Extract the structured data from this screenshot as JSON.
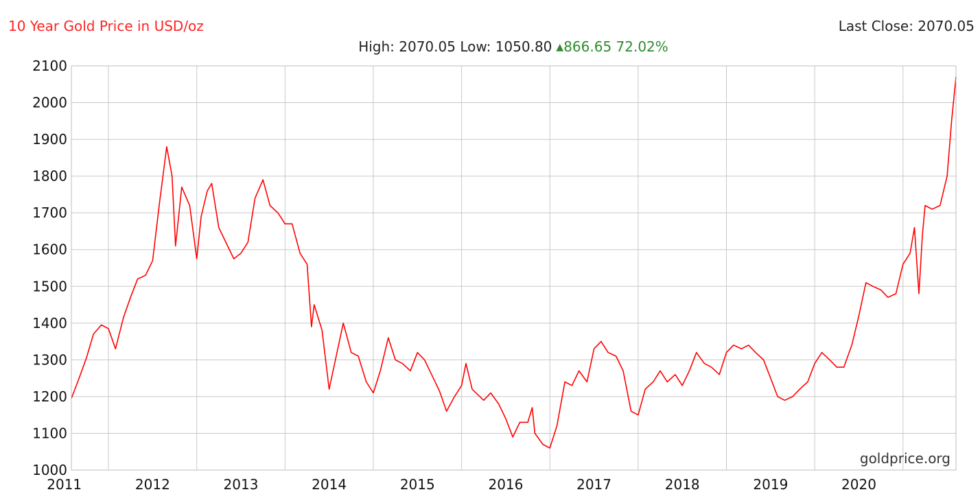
{
  "header": {
    "title": "10 Year Gold Price in USD/oz",
    "last_close": "Last Close: 2070.05",
    "high_low": "High: 2070.05 Low: 1050.80",
    "change": "866.65 72.02%"
  },
  "watermark": "goldprice.org",
  "colors": {
    "line": "#ff0000",
    "grid": "#c8c8c8",
    "title": "#ff2222",
    "positive": "#2e8b2e"
  },
  "chart_data": {
    "type": "line",
    "title": "10 Year Gold Price in USD/oz",
    "xlabel": "",
    "ylabel": "",
    "ylim": [
      1000,
      2100
    ],
    "xlim": [
      2010.58,
      2020.6
    ],
    "yticks": [
      1000,
      1100,
      1200,
      1300,
      1400,
      1500,
      1600,
      1700,
      1800,
      1900,
      2000,
      2100
    ],
    "xticks": [
      "2011",
      "2012",
      "2013",
      "2014",
      "2015",
      "2016",
      "2017",
      "2018",
      "2019",
      "2020"
    ],
    "grid": true,
    "series": [
      {
        "name": "",
        "points": [
          [
            2010.58,
            1195
          ],
          [
            2010.66,
            1245
          ],
          [
            2010.75,
            1305
          ],
          [
            2010.83,
            1370
          ],
          [
            2010.92,
            1395
          ],
          [
            2011.0,
            1385
          ],
          [
            2011.08,
            1330
          ],
          [
            2011.17,
            1415
          ],
          [
            2011.25,
            1470
          ],
          [
            2011.33,
            1520
          ],
          [
            2011.42,
            1530
          ],
          [
            2011.5,
            1570
          ],
          [
            2011.58,
            1730
          ],
          [
            2011.66,
            1880
          ],
          [
            2011.72,
            1800
          ],
          [
            2011.76,
            1610
          ],
          [
            2011.83,
            1770
          ],
          [
            2011.92,
            1720
          ],
          [
            2012.0,
            1575
          ],
          [
            2012.05,
            1690
          ],
          [
            2012.12,
            1760
          ],
          [
            2012.17,
            1780
          ],
          [
            2012.25,
            1660
          ],
          [
            2012.33,
            1620
          ],
          [
            2012.42,
            1575
          ],
          [
            2012.5,
            1590
          ],
          [
            2012.58,
            1620
          ],
          [
            2012.66,
            1740
          ],
          [
            2012.75,
            1790
          ],
          [
            2012.83,
            1720
          ],
          [
            2012.92,
            1700
          ],
          [
            2013.0,
            1670
          ],
          [
            2013.08,
            1670
          ],
          [
            2013.17,
            1590
          ],
          [
            2013.25,
            1560
          ],
          [
            2013.3,
            1390
          ],
          [
            2013.33,
            1450
          ],
          [
            2013.42,
            1380
          ],
          [
            2013.5,
            1220
          ],
          [
            2013.58,
            1310
          ],
          [
            2013.66,
            1400
          ],
          [
            2013.75,
            1320
          ],
          [
            2013.83,
            1310
          ],
          [
            2013.92,
            1240
          ],
          [
            2014.0,
            1210
          ],
          [
            2014.08,
            1270
          ],
          [
            2014.17,
            1360
          ],
          [
            2014.25,
            1300
          ],
          [
            2014.33,
            1290
          ],
          [
            2014.42,
            1270
          ],
          [
            2014.5,
            1320
          ],
          [
            2014.58,
            1300
          ],
          [
            2014.66,
            1260
          ],
          [
            2014.75,
            1215
          ],
          [
            2014.83,
            1160
          ],
          [
            2014.92,
            1200
          ],
          [
            2015.0,
            1230
          ],
          [
            2015.05,
            1290
          ],
          [
            2015.12,
            1220
          ],
          [
            2015.25,
            1190
          ],
          [
            2015.33,
            1210
          ],
          [
            2015.42,
            1180
          ],
          [
            2015.5,
            1140
          ],
          [
            2015.58,
            1090
          ],
          [
            2015.66,
            1130
          ],
          [
            2015.75,
            1130
          ],
          [
            2015.8,
            1170
          ],
          [
            2015.83,
            1100
          ],
          [
            2015.92,
            1070
          ],
          [
            2016.0,
            1060
          ],
          [
            2016.08,
            1120
          ],
          [
            2016.17,
            1240
          ],
          [
            2016.25,
            1230
          ],
          [
            2016.33,
            1270
          ],
          [
            2016.42,
            1240
          ],
          [
            2016.5,
            1330
          ],
          [
            2016.58,
            1350
          ],
          [
            2016.66,
            1320
          ],
          [
            2016.75,
            1310
          ],
          [
            2016.83,
            1270
          ],
          [
            2016.92,
            1160
          ],
          [
            2017.0,
            1150
          ],
          [
            2017.08,
            1220
          ],
          [
            2017.17,
            1240
          ],
          [
            2017.25,
            1270
          ],
          [
            2017.33,
            1240
          ],
          [
            2017.42,
            1260
          ],
          [
            2017.5,
            1230
          ],
          [
            2017.58,
            1270
          ],
          [
            2017.66,
            1320
          ],
          [
            2017.75,
            1290
          ],
          [
            2017.83,
            1280
          ],
          [
            2017.92,
            1260
          ],
          [
            2018.0,
            1320
          ],
          [
            2018.08,
            1340
          ],
          [
            2018.17,
            1330
          ],
          [
            2018.25,
            1340
          ],
          [
            2018.33,
            1320
          ],
          [
            2018.42,
            1300
          ],
          [
            2018.5,
            1250
          ],
          [
            2018.58,
            1200
          ],
          [
            2018.66,
            1190
          ],
          [
            2018.75,
            1200
          ],
          [
            2018.83,
            1220
          ],
          [
            2018.92,
            1240
          ],
          [
            2019.0,
            1290
          ],
          [
            2019.08,
            1320
          ],
          [
            2019.17,
            1300
          ],
          [
            2019.25,
            1280
          ],
          [
            2019.33,
            1280
          ],
          [
            2019.42,
            1340
          ],
          [
            2019.5,
            1420
          ],
          [
            2019.58,
            1510
          ],
          [
            2019.66,
            1500
          ],
          [
            2019.75,
            1490
          ],
          [
            2019.83,
            1470
          ],
          [
            2019.92,
            1480
          ],
          [
            2020.0,
            1560
          ],
          [
            2020.08,
            1590
          ],
          [
            2020.13,
            1660
          ],
          [
            2020.18,
            1480
          ],
          [
            2020.22,
            1640
          ],
          [
            2020.25,
            1720
          ],
          [
            2020.33,
            1710
          ],
          [
            2020.42,
            1720
          ],
          [
            2020.5,
            1800
          ],
          [
            2020.55,
            1950
          ],
          [
            2020.6,
            2070
          ]
        ]
      }
    ]
  }
}
